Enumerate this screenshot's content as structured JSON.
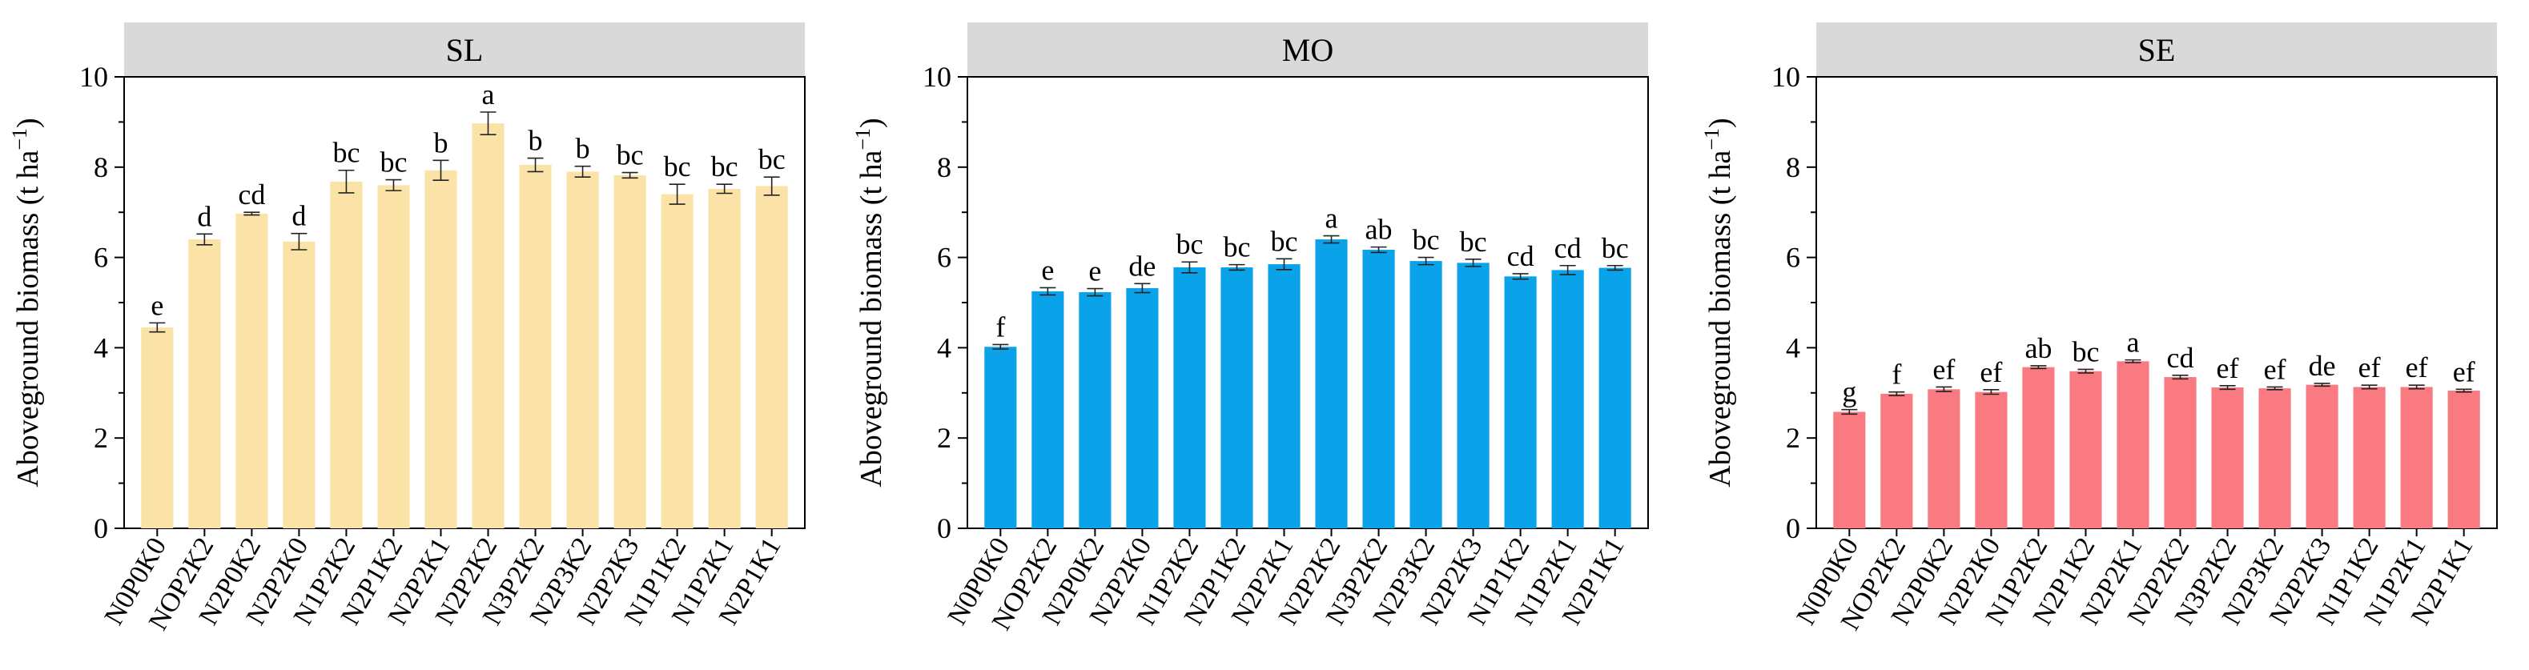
{
  "chart_data": [
    {
      "type": "bar",
      "title": "SL",
      "ylabel": "Aboveground biomass (t ha",
      "ylabel_superscript": "−1",
      "ylabel_close": ")",
      "ylim": [
        0,
        10
      ],
      "yticks": [
        0,
        2,
        4,
        6,
        8,
        10
      ],
      "grid": false,
      "bar_color": "#FBE3A8",
      "categories": [
        "N0P0K0",
        "NOP2K2",
        "N2P0K2",
        "N2P2K0",
        "N1P2K2",
        "N2P1K2",
        "N2P2K1",
        "N2P2K2",
        "N3P2K2",
        "N2P3K2",
        "N2P2K3",
        "N1P1K2",
        "N1P2K1",
        "N2P1K1"
      ],
      "values": [
        4.45,
        6.4,
        6.97,
        6.35,
        7.68,
        7.6,
        7.93,
        8.97,
        8.05,
        7.9,
        7.82,
        7.4,
        7.52,
        7.58
      ],
      "errors": [
        0.1,
        0.12,
        0.03,
        0.18,
        0.25,
        0.12,
        0.22,
        0.25,
        0.15,
        0.12,
        0.06,
        0.22,
        0.1,
        0.2
      ],
      "letters": [
        "e",
        "d",
        "cd",
        "d",
        "bc",
        "bc",
        "b",
        "a",
        "b",
        "b",
        "bc",
        "bc",
        "bc",
        "bc"
      ]
    },
    {
      "type": "bar",
      "title": "MO",
      "ylabel": "Aboveground biomass (t ha",
      "ylabel_superscript": "−1",
      "ylabel_close": ")",
      "ylim": [
        0,
        10
      ],
      "yticks": [
        0,
        2,
        4,
        6,
        8,
        10
      ],
      "grid": false,
      "bar_color": "#0AA3EA",
      "categories": [
        "N0P0K0",
        "NOP2K2",
        "N2P0K2",
        "N2P2K0",
        "N1P2K2",
        "N2P1K2",
        "N2P2K1",
        "N2P2K2",
        "N3P2K2",
        "N2P3K2",
        "N2P2K3",
        "N1P1K2",
        "N1P2K1",
        "N2P1K1"
      ],
      "values": [
        4.02,
        5.25,
        5.23,
        5.32,
        5.78,
        5.78,
        5.85,
        6.4,
        6.17,
        5.92,
        5.88,
        5.58,
        5.72,
        5.77
      ],
      "errors": [
        0.05,
        0.08,
        0.08,
        0.1,
        0.12,
        0.06,
        0.12,
        0.08,
        0.06,
        0.08,
        0.08,
        0.06,
        0.1,
        0.05
      ],
      "letters": [
        "f",
        "e",
        "e",
        "de",
        "bc",
        "bc",
        "bc",
        "a",
        "ab",
        "bc",
        "bc",
        "cd",
        "cd",
        "bc"
      ]
    },
    {
      "type": "bar",
      "title": "SE",
      "ylabel": "Aboveground biomass (t ha",
      "ylabel_superscript": "−1",
      "ylabel_close": ")",
      "ylim": [
        0,
        10
      ],
      "yticks": [
        0,
        2,
        4,
        6,
        8,
        10
      ],
      "grid": false,
      "bar_color": "#F97A80",
      "categories": [
        "N0P0K0",
        "NOP2K2",
        "N2P0K2",
        "N2P2K0",
        "N1P2K2",
        "N2P1K2",
        "N2P2K1",
        "N2P2K2",
        "N3P2K2",
        "N2P3K2",
        "N2P2K3",
        "N1P1K2",
        "N1P2K1",
        "N2P1K1"
      ],
      "values": [
        2.58,
        2.98,
        3.08,
        3.02,
        3.57,
        3.48,
        3.7,
        3.35,
        3.12,
        3.1,
        3.18,
        3.13,
        3.13,
        3.05
      ],
      "errors": [
        0.05,
        0.04,
        0.05,
        0.05,
        0.03,
        0.04,
        0.03,
        0.04,
        0.04,
        0.03,
        0.03,
        0.04,
        0.04,
        0.03
      ],
      "letters": [
        "g",
        "f",
        "ef",
        "ef",
        "ab",
        "bc",
        "a",
        "cd",
        "ef",
        "ef",
        "de",
        "ef",
        "ef",
        "ef"
      ]
    }
  ]
}
